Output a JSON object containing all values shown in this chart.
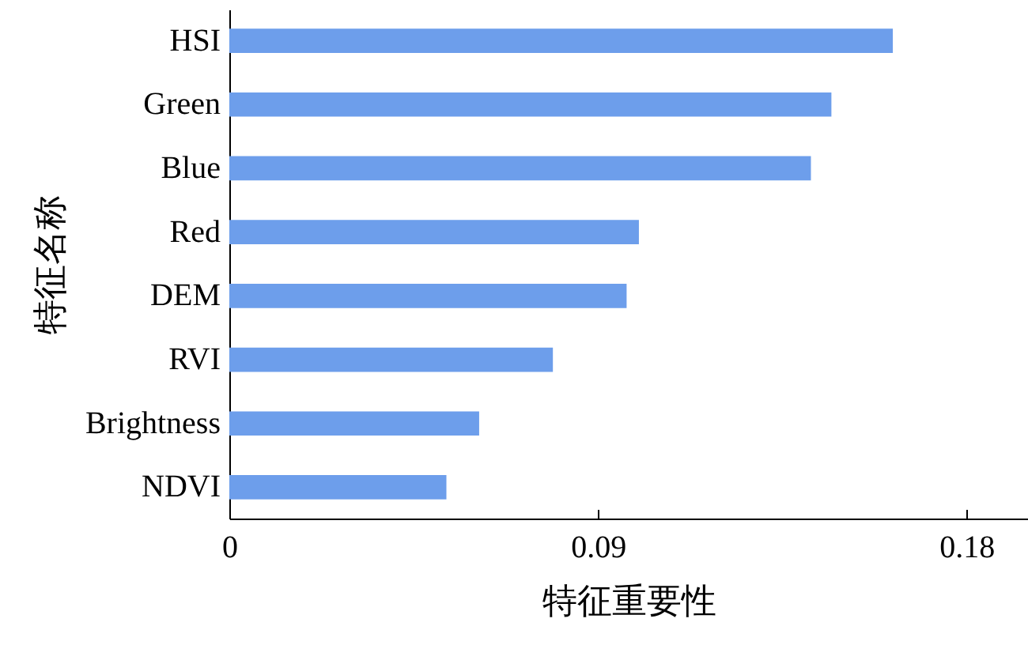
{
  "chart_data": {
    "type": "bar",
    "orientation": "horizontal",
    "xlabel": "特征重要性",
    "ylabel": "特征名称",
    "categories": [
      "HSI",
      "Green",
      "Blue",
      "Red",
      "DEM",
      "RVI",
      "Brightness",
      "NDVI"
    ],
    "values": [
      0.162,
      0.147,
      0.142,
      0.1,
      0.097,
      0.079,
      0.061,
      0.053
    ],
    "color": "#6d9eeb",
    "xlim": [
      0,
      0.195
    ],
    "xticks": [
      0,
      0.09,
      0.18
    ],
    "grid": false
  }
}
